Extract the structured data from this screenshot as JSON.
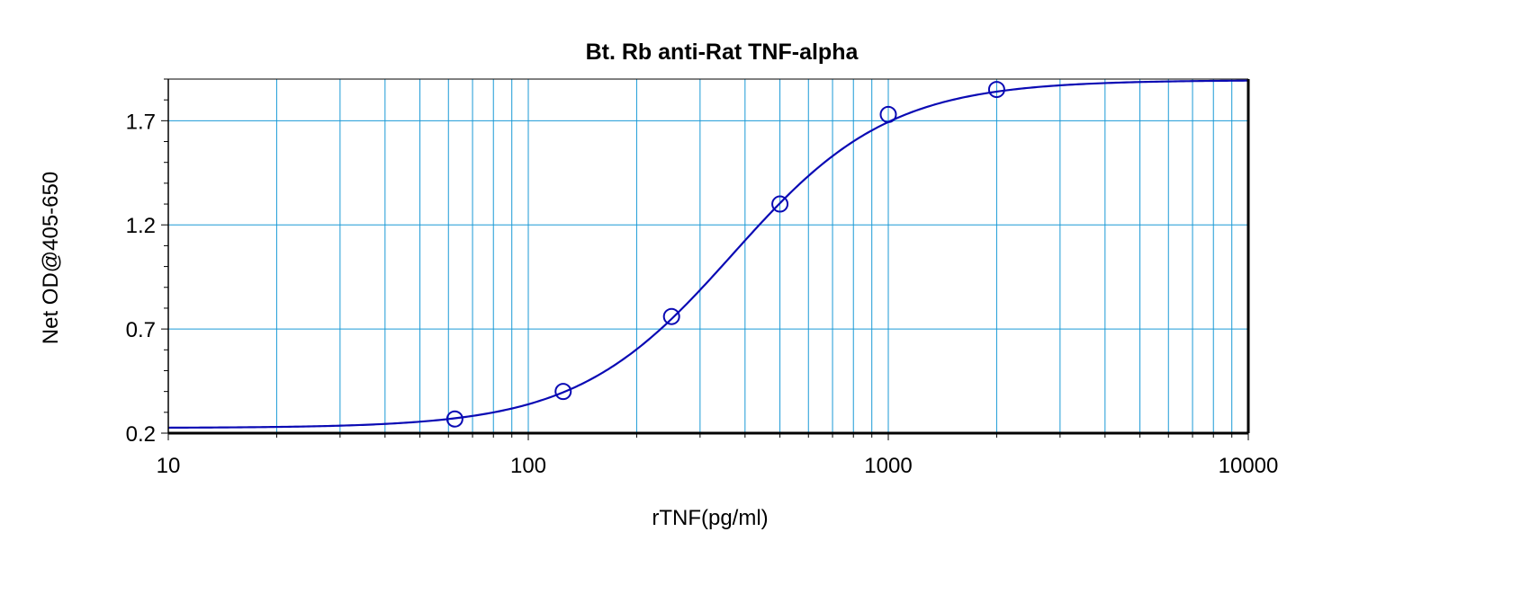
{
  "chart_data": {
    "type": "scatter",
    "title": "Bt. Rb anti-Rat TNF-alpha",
    "xlabel": "rTNF(pg/ml)",
    "ylabel": "Net OD@405-650",
    "x_scale": "log",
    "xlim": [
      10,
      10000
    ],
    "ylim": [
      0.2,
      1.9
    ],
    "x_ticks": [
      10,
      100,
      1000,
      10000
    ],
    "x_tick_labels": [
      "10",
      "100",
      "1000",
      "10000"
    ],
    "y_ticks": [
      0.2,
      0.7,
      1.2,
      1.7
    ],
    "y_tick_labels": [
      "0.2",
      "0.7",
      "1.2",
      "1.7"
    ],
    "grid": true,
    "series": [
      {
        "x": [
          62.5,
          125,
          250,
          500,
          1000,
          2000
        ],
        "y": [
          0.268,
          0.4,
          0.76,
          1.3,
          1.73,
          1.85
        ]
      }
    ],
    "fit_curve": {
      "bottom": 0.225,
      "top": 1.895,
      "ec50": 370,
      "hill": 2.0
    }
  },
  "colors": {
    "axis": "#000000",
    "grid": "#1a9ad6",
    "curve": "#0a0ab4",
    "marker": "#0a0ab4"
  }
}
